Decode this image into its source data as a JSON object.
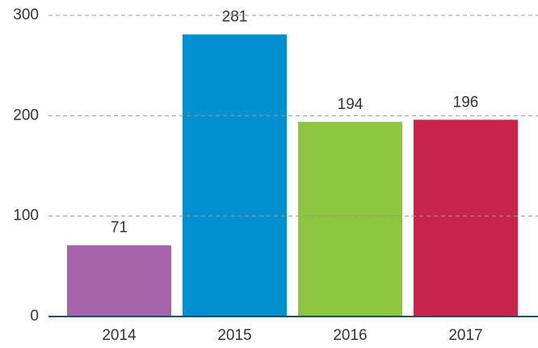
{
  "chart_data": {
    "type": "bar",
    "categories": [
      "2014",
      "2015",
      "2016",
      "2017"
    ],
    "values": [
      71,
      281,
      194,
      196
    ],
    "colors": [
      "#a665aa",
      "#008fd0",
      "#8cc63f",
      "#c8234a"
    ],
    "ylim": [
      0,
      300
    ],
    "yticks": [
      0,
      100,
      200,
      300
    ],
    "grid": true
  }
}
